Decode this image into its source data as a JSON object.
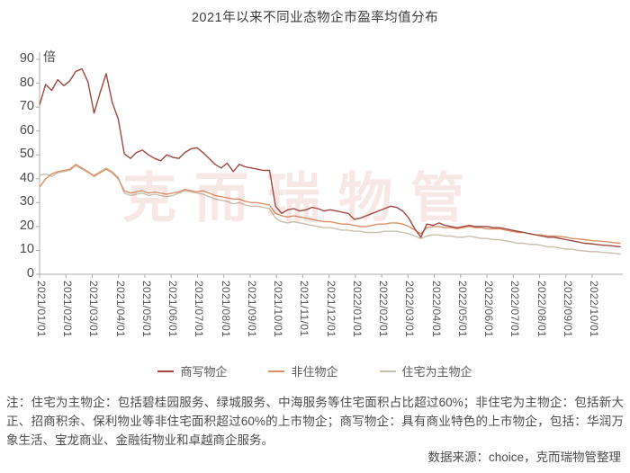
{
  "title": "2021年以来不同业态物企市盈率均值分布",
  "watermark": "克而瑞物管",
  "note": "注：住宅为主物企：包括碧桂园服务、绿城服务、中海服务等住宅面积占比超过60%；非住宅为主物企：包括新大正、招商积余、保利物业等非住宅面积超过60%的上市物企；商写物企：具有商业特色的上市物企，包括：华润万象生活、宝龙商业、金融街物业和卓越商企服务。",
  "source": "数据来源：choice，克而瑞物管整理",
  "chart_data": {
    "type": "line",
    "title": "2021年以来不同业态物企市盈率均值分布",
    "ylabel": "倍",
    "ylim": [
      0,
      90
    ],
    "y_ticks": [
      0,
      10,
      20,
      30,
      40,
      50,
      60,
      70,
      80,
      90
    ],
    "grid": false,
    "legend_position": "bottom",
    "x_labels": [
      "2021/01/01",
      "2021/02/01",
      "2021/03/01",
      "2021/04/01",
      "2021/05/01",
      "2021/06/01",
      "2021/07/01",
      "2021/08/01",
      "2021/09/01",
      "2021/10/01",
      "2021/11/01",
      "2021/12/01",
      "2022/01/01",
      "2022/02/01",
      "2022/03/01",
      "2022/04/01",
      "2022/05/01",
      "2022/06/01",
      "2022/07/01",
      "2022/08/01",
      "2022/09/01",
      "2022/10/01"
    ],
    "x_resolution": "weekly",
    "axis_color": "#ababab",
    "series": [
      {
        "name": "商写物企",
        "color": "#9e4742",
        "values": [
          71,
          79.5,
          77,
          81.5,
          79,
          81,
          85,
          86,
          80.5,
          67.5,
          76,
          84,
          72,
          65,
          50.5,
          48.5,
          51,
          52,
          50,
          48.5,
          47.5,
          50,
          49,
          48.5,
          51,
          52.5,
          53,
          51,
          48.5,
          46,
          44.5,
          46.5,
          43,
          46,
          45,
          44.5,
          44,
          43.5,
          43.5,
          28.5,
          25.5,
          27,
          27.5,
          26.5,
          27,
          28,
          27.5,
          26.5,
          27,
          26.5,
          26,
          25.5,
          23,
          23.5,
          24.5,
          25.5,
          26.5,
          27.5,
          28.5,
          28,
          26.5,
          23.5,
          19,
          15.5,
          21,
          20.5,
          21.5,
          20.5,
          20,
          19.5,
          20,
          20.5,
          20,
          20,
          20,
          19.5,
          19.5,
          19,
          18.5,
          18,
          17.5,
          17,
          16.5,
          16,
          15.5,
          15.5,
          15,
          14.5,
          14,
          13.5,
          13,
          12.8,
          12.5,
          12.2,
          12,
          11.8,
          11.5
        ]
      },
      {
        "name": "非住物企",
        "color": "#dd9066",
        "values": [
          36.5,
          40,
          42,
          43,
          43.5,
          44,
          46,
          44.5,
          43,
          41,
          42.5,
          44,
          42.5,
          40,
          35,
          34,
          34.5,
          35,
          34,
          34.5,
          34,
          33.5,
          34,
          34.5,
          35.5,
          35,
          34.5,
          35,
          34,
          33,
          32.5,
          32,
          31.5,
          31.5,
          30.5,
          30,
          30,
          29.5,
          29,
          25.5,
          24.5,
          24,
          24.5,
          24,
          23.5,
          23,
          22.5,
          22,
          22,
          21.5,
          21,
          21,
          20.5,
          20,
          20,
          20.5,
          21,
          21,
          21.5,
          21.5,
          21,
          20,
          18.5,
          17,
          19.5,
          20,
          20,
          19.5,
          19.5,
          19,
          19.5,
          20,
          19.5,
          19.5,
          19,
          19,
          19,
          18.5,
          18,
          17.5,
          17.5,
          17,
          16.5,
          16.5,
          16,
          16,
          15.8,
          15.5,
          15,
          14.8,
          14.5,
          14.2,
          14,
          13.8,
          13.5,
          13.2,
          13
        ]
      },
      {
        "name": "住宅为主物企",
        "color": "#c8bfac",
        "values": [
          41.5,
          42,
          41,
          42.5,
          43,
          43.5,
          45.5,
          44,
          42.5,
          41.5,
          43,
          44.5,
          43,
          40.5,
          34,
          33,
          33.5,
          34,
          33,
          33.5,
          33,
          32.5,
          33,
          34,
          35,
          34.5,
          34,
          33.5,
          32.5,
          31.5,
          31,
          30.5,
          29.5,
          30,
          29,
          28.5,
          28.5,
          28,
          27.5,
          23.5,
          22,
          21.5,
          22,
          21.5,
          21,
          20.5,
          20,
          19.5,
          19.5,
          19,
          18.5,
          18.5,
          18,
          18,
          17.5,
          17.5,
          17.5,
          18,
          18,
          18,
          17.5,
          17,
          16,
          15,
          16,
          16.5,
          16.5,
          16,
          16,
          15.5,
          15.5,
          16,
          15.5,
          15,
          15,
          14.5,
          14.5,
          14,
          13.5,
          13,
          13,
          12.5,
          12.5,
          12,
          11.5,
          11.5,
          11,
          10.5,
          10.5,
          10,
          9.8,
          9.5,
          9.5,
          9.2,
          9,
          8.8,
          8.5
        ]
      }
    ]
  }
}
